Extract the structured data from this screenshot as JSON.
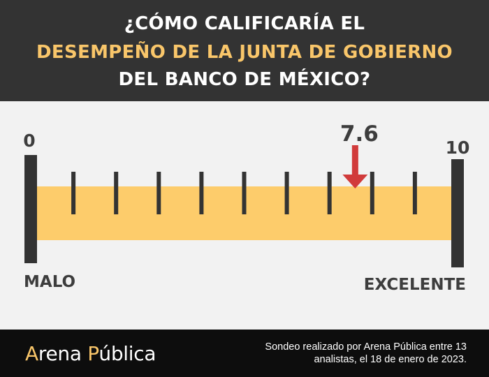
{
  "header": {
    "line1": "¿CÓMO CALIFICARÍA EL",
    "line2": "DESEMPEÑO DE LA JUNTA DE GOBIERNO",
    "line3": "DEL BANCO DE MÉXICO?"
  },
  "chart_data": {
    "type": "gauge",
    "scale_min": 0,
    "scale_max": 10,
    "ticks": [
      1,
      2,
      3,
      4,
      5,
      6,
      7,
      8,
      9
    ],
    "value": 7.6,
    "value_label": "7.6",
    "min_label": "0",
    "max_label": "10",
    "left_caption": "MALO",
    "right_caption": "EXCELENTE",
    "colors": {
      "band": "#fdcc6b",
      "markers": "#333333",
      "arrow": "#d13b3b",
      "text": "#3d3d3d"
    }
  },
  "footer": {
    "brand_first_initial": "A",
    "brand_first_rest": "rena ",
    "brand_second_initial": "P",
    "brand_second_rest": "ública",
    "note": "Sondeo realizado por Arena Pública entre 13 analistas, el 18 de enero de 2023."
  }
}
